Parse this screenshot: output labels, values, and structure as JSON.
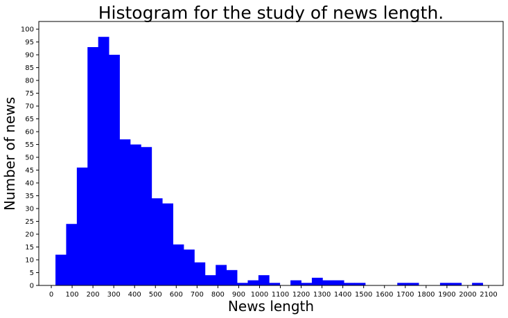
{
  "chart_data": {
    "type": "bar",
    "title": "Histogram for the study of news length.",
    "xlabel": "News length",
    "ylabel": "Number of news",
    "bar_color": "#0000ff",
    "bin_width": 51.3,
    "bins_start": [
      20,
      71.3,
      122.6,
      173.9,
      225.2,
      276.5,
      327.8,
      379.1,
      430.4,
      481.7,
      533.0,
      584.3,
      635.6,
      686.9,
      738.2,
      789.5,
      840.8,
      892.1,
      943.4,
      994.7,
      1046.0,
      1097.3,
      1148.6,
      1199.9,
      1251.2,
      1302.5,
      1353.8,
      1405.1,
      1456.4,
      1507.7,
      1559.0,
      1610.3,
      1661.6,
      1712.9,
      1764.2,
      1815.5,
      1866.8,
      1918.1,
      1969.4,
      2020.7
    ],
    "values": [
      12,
      24,
      46,
      93,
      97,
      90,
      57,
      55,
      54,
      34,
      32,
      16,
      14,
      9,
      4,
      8,
      6,
      1,
      2,
      4,
      1,
      0,
      2,
      1,
      3,
      2,
      2,
      1,
      1,
      0,
      0,
      0,
      1,
      1,
      0,
      0,
      1,
      1,
      0,
      1
    ],
    "xlim": [
      -60,
      2170
    ],
    "ylim": [
      0,
      103
    ],
    "xticks": [
      0,
      100,
      200,
      300,
      400,
      500,
      600,
      700,
      800,
      900,
      1000,
      1100,
      1200,
      1300,
      1400,
      1500,
      1600,
      1700,
      1800,
      1900,
      2000,
      2100
    ],
    "yticks": [
      0,
      5,
      10,
      15,
      20,
      25,
      30,
      35,
      40,
      45,
      50,
      55,
      60,
      65,
      70,
      75,
      80,
      85,
      90,
      95,
      100
    ],
    "grid": false,
    "legend": "none"
  }
}
